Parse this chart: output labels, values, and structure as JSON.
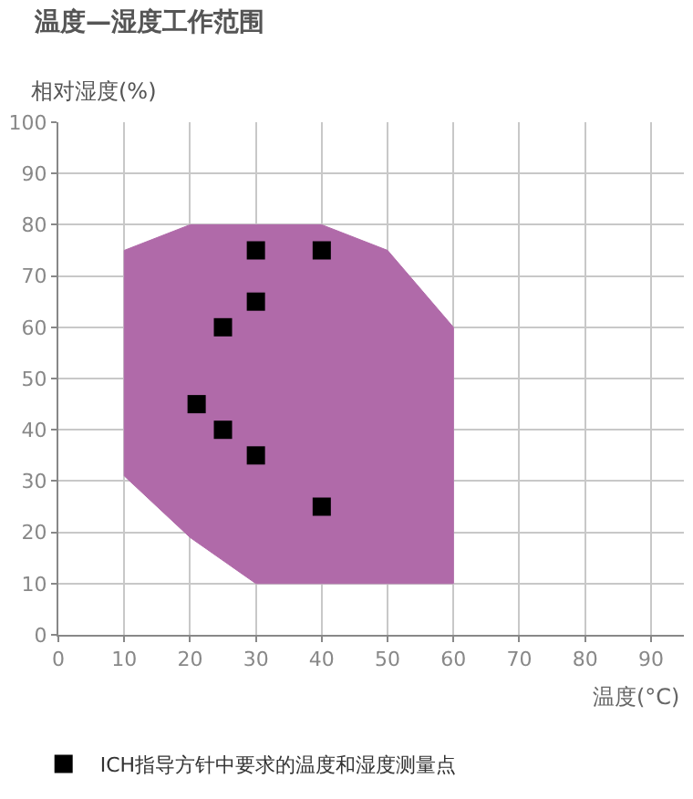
{
  "chart_data": {
    "type": "scatter",
    "title": "温度—湿度工作范围",
    "xlabel": "温度(°C)",
    "ylabel": "相对湿度(%)",
    "series": [
      {
        "type": "area",
        "color": "#b06aa9",
        "x": [
          10,
          20,
          40,
          50,
          60,
          60,
          30,
          20,
          10,
          10
        ],
        "values": [
          75,
          80,
          80,
          75,
          60,
          10,
          10,
          19,
          31,
          75
        ]
      },
      {
        "name": "ICH指导方针中要求的温度和湿度测量点",
        "color": "#000000",
        "marker": "square",
        "x": [
          30,
          40,
          30,
          25,
          21,
          25,
          30,
          40
        ],
        "values": [
          75,
          75,
          65,
          60,
          45,
          40,
          35,
          25
        ]
      }
    ],
    "xlim": [
      0,
      95
    ],
    "xticks": [
      0,
      10,
      20,
      30,
      40,
      50,
      60,
      70,
      80,
      90
    ],
    "ylim": [
      0,
      100
    ],
    "yticks": [
      0,
      10,
      20,
      30,
      40,
      50,
      60,
      70,
      80,
      90,
      100
    ],
    "grid": true,
    "legend": "bottom"
  }
}
